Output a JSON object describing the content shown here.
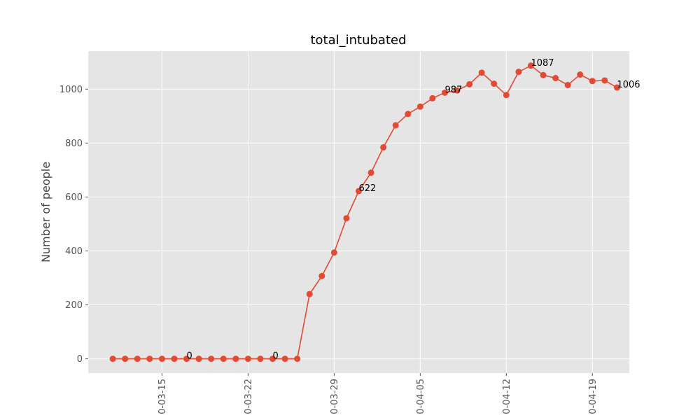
{
  "chart_data": {
    "type": "line",
    "title": "total_intubated",
    "xlabel": "",
    "ylabel": "Number of people",
    "x": [
      "2020-03-11",
      "2020-03-12",
      "2020-03-13",
      "2020-03-14",
      "2020-03-15",
      "2020-03-16",
      "2020-03-17",
      "2020-03-18",
      "2020-03-19",
      "2020-03-20",
      "2020-03-21",
      "2020-03-22",
      "2020-03-23",
      "2020-03-24",
      "2020-03-25",
      "2020-03-26",
      "2020-03-27",
      "2020-03-28",
      "2020-03-29",
      "2020-03-30",
      "2020-03-31",
      "2020-04-01",
      "2020-04-02",
      "2020-04-03",
      "2020-04-04",
      "2020-04-05",
      "2020-04-06",
      "2020-04-07",
      "2020-04-08",
      "2020-04-09",
      "2020-04-10",
      "2020-04-11",
      "2020-04-12",
      "2020-04-13",
      "2020-04-14",
      "2020-04-15",
      "2020-04-16",
      "2020-04-17",
      "2020-04-18",
      "2020-04-19",
      "2020-04-20",
      "2020-04-21"
    ],
    "series": [
      {
        "values": [
          0,
          0,
          0,
          0,
          0,
          0,
          0,
          0,
          0,
          0,
          0,
          0,
          0,
          0,
          0,
          0,
          240,
          307,
          394,
          521,
          622,
          690,
          784,
          866,
          908,
          935,
          966,
          987,
          995,
          1018,
          1061,
          1020,
          978,
          1064,
          1087,
          1052,
          1041,
          1015,
          1054,
          1030,
          1032,
          1006
        ],
        "color": "#E24A33"
      }
    ],
    "xticks": [
      "0-03-15",
      "0-03-22",
      "0-03-29",
      "0-04-05",
      "0-04-12",
      "0-04-19"
    ],
    "xtick_dates": [
      "2020-03-15",
      "2020-03-22",
      "2020-03-29",
      "2020-04-05",
      "2020-04-12",
      "2020-04-19"
    ],
    "yticks": [
      0,
      200,
      400,
      600,
      800,
      1000
    ],
    "ylim": [
      -53,
      1141
    ],
    "xlim": [
      "2020-03-09",
      "2020-04-22"
    ],
    "annotations": [
      {
        "x": "2020-03-17",
        "y": 0,
        "text": "0"
      },
      {
        "x": "2020-03-24",
        "y": 0,
        "text": "0"
      },
      {
        "x": "2020-03-31",
        "y": 622,
        "text": "622"
      },
      {
        "x": "2020-04-07",
        "y": 987,
        "text": "987"
      },
      {
        "x": "2020-04-14",
        "y": 1087,
        "text": "1087"
      },
      {
        "x": "2020-04-21",
        "y": 1006,
        "text": "1006"
      }
    ],
    "grid": true,
    "background": "#E5E5E5",
    "grid_color": "#FFFFFF"
  }
}
